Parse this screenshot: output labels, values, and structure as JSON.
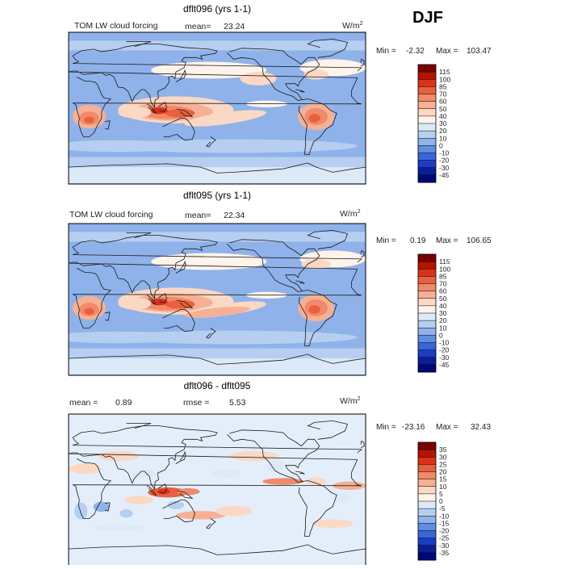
{
  "season": "DJF",
  "units": "W/m",
  "units_sup": "2",
  "chart_data": [
    {
      "type": "heatmap",
      "title": "dflt096 (yrs 1-1)",
      "field_label": "TOM LW cloud forcing",
      "stats": {
        "mean_label": "mean=",
        "mean": "23.24"
      },
      "range": {
        "min_label": "Min =",
        "min": "-2.32",
        "max_label": "Max =",
        "max": "103.47"
      },
      "colorbar": {
        "labels": [
          "115",
          "100",
          "85",
          "70",
          "60",
          "50",
          "40",
          "30",
          "20",
          "10",
          "0",
          "-10",
          "-20",
          "-30",
          "-45"
        ],
        "colors": [
          "#7a0000",
          "#b41400",
          "#d8321a",
          "#e8603e",
          "#f08a6a",
          "#f6b094",
          "#fbd8c4",
          "#fff3ea",
          "#dceaf8",
          "#b6cff0",
          "#8fb2ea",
          "#5f8ee0",
          "#3a66d8",
          "#1c3cc4",
          "#0a1e96",
          "#000878"
        ]
      }
    },
    {
      "type": "heatmap",
      "title": "dflt095 (yrs 1-1)",
      "field_label": "TOM LW cloud forcing",
      "stats": {
        "mean_label": "mean=",
        "mean": "22.34"
      },
      "range": {
        "min_label": "Min =",
        "min": "0.19",
        "max_label": "Max =",
        "max": "106.65"
      },
      "colorbar": {
        "labels": [
          "115",
          "100",
          "85",
          "70",
          "60",
          "50",
          "40",
          "30",
          "20",
          "10",
          "0",
          "-10",
          "-20",
          "-30",
          "-45"
        ],
        "colors": [
          "#7a0000",
          "#b41400",
          "#d8321a",
          "#e8603e",
          "#f08a6a",
          "#f6b094",
          "#fbd8c4",
          "#fff3ea",
          "#dceaf8",
          "#b6cff0",
          "#8fb2ea",
          "#5f8ee0",
          "#3a66d8",
          "#1c3cc4",
          "#0a1e96",
          "#000878"
        ]
      }
    },
    {
      "type": "heatmap",
      "title": "dflt096 - dflt095",
      "stats": {
        "mean_label": "mean =",
        "mean": "0.89",
        "rmse_label": "rmse =",
        "rmse": "5.53"
      },
      "range": {
        "min_label": "Min =",
        "min": "-23.16",
        "max_label": "Max =",
        "max": "32.43"
      },
      "colorbar": {
        "labels": [
          "35",
          "30",
          "25",
          "20",
          "15",
          "10",
          "5",
          "0",
          "-5",
          "-10",
          "-15",
          "-20",
          "-25",
          "-30",
          "-35"
        ],
        "colors": [
          "#7a0000",
          "#b41400",
          "#d8321a",
          "#e8603e",
          "#f08a6a",
          "#f6b094",
          "#fbd8c4",
          "#fff3ea",
          "#dceaf8",
          "#b6cff0",
          "#8fb2ea",
          "#5f8ee0",
          "#3a66d8",
          "#1c3cc4",
          "#0a1e96",
          "#000878"
        ]
      }
    }
  ]
}
